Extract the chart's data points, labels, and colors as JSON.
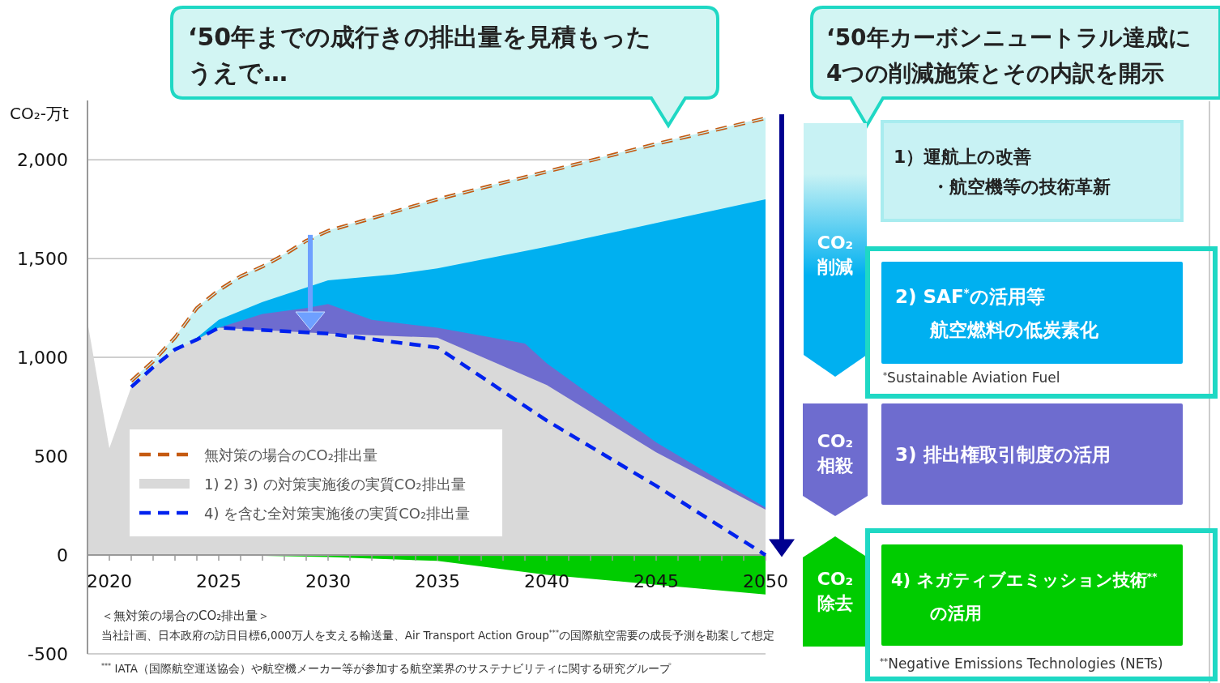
{
  "chart_data": {
    "type": "area",
    "ylabel": "CO₂-万t",
    "xlim": [
      2019,
      2050
    ],
    "xticks": [
      {
        "value": 2020,
        "label": "2020"
      },
      {
        "value": 2021,
        "label": null
      },
      {
        "value": 2022,
        "label": null
      },
      {
        "value": 2023,
        "label": null
      },
      {
        "value": 2024,
        "label": null
      },
      {
        "value": 2025,
        "label": "2025"
      },
      {
        "value": 2026,
        "label": null
      },
      {
        "value": 2027,
        "label": null
      },
      {
        "value": 2028,
        "label": null
      },
      {
        "value": 2029,
        "label": null
      },
      {
        "value": 2030,
        "label": "2030"
      },
      {
        "value": 2031,
        "label": null
      },
      {
        "value": 2032,
        "label": null
      },
      {
        "value": 2033,
        "label": null
      },
      {
        "value": 2034,
        "label": null
      },
      {
        "value": 2035,
        "label": "2035"
      },
      {
        "value": 2036,
        "label": null
      },
      {
        "value": 2037,
        "label": null
      },
      {
        "value": 2038,
        "label": null
      },
      {
        "value": 2039,
        "label": null
      },
      {
        "value": 2040,
        "label": "2040"
      },
      {
        "value": 2041,
        "label": null
      },
      {
        "value": 2042,
        "label": null
      },
      {
        "value": 2043,
        "label": null
      },
      {
        "value": 2044,
        "label": null
      },
      {
        "value": 2045,
        "label": "2045"
      },
      {
        "value": 2046,
        "label": null
      },
      {
        "value": 2047,
        "label": null
      },
      {
        "value": 2048,
        "label": null
      },
      {
        "value": 2049,
        "label": null
      },
      {
        "value": 2050,
        "label": "2050"
      }
    ],
    "ylim": [
      -500,
      2300
    ],
    "yticks": [
      -500,
      0,
      500,
      {
        "value": 1000,
        "label": "1,000"
      },
      {
        "value": 1500,
        "label": "1,500"
      },
      {
        "value": 2000,
        "label": "2,000"
      }
    ],
    "grid": "y",
    "legend": "bottom left",
    "series": [
      {
        "name": "無対策の場合のCO₂排出量",
        "type": "line",
        "line_style": "dashed",
        "color": "#c55a11",
        "x": [
          2021,
          2022,
          2023,
          2024,
          2025,
          2026,
          2027,
          2028,
          2029,
          2030,
          2035,
          2040,
          2045,
          2050
        ],
        "values": [
          880,
          980,
          1100,
          1250,
          1340,
          1410,
          1460,
          1520,
          1590,
          1640,
          1800,
          1940,
          2080,
          2210
        ]
      },
      {
        "color": "#c8f2f4",
        "x": [
          2021,
          2022,
          2023,
          2024,
          2025,
          2026,
          2027,
          2028,
          2029,
          2030,
          2035,
          2040,
          2045,
          2050
        ],
        "values": [
          880,
          980,
          1100,
          1250,
          1340,
          1410,
          1460,
          1520,
          1590,
          1640,
          1800,
          1940,
          2080,
          2210
        ]
      },
      {
        "color": "#00b0f0",
        "x": [
          2024,
          2025,
          2027,
          2030,
          2033,
          2035,
          2040,
          2045,
          2050
        ],
        "values": [
          1100,
          1190,
          1280,
          1390,
          1420,
          1450,
          1560,
          1680,
          1800
        ]
      },
      {
        "color": "#6e6ccf",
        "x": [
          2024,
          2025,
          2027,
          2029,
          2030,
          2032,
          2035,
          2039,
          2040,
          2045,
          2050
        ],
        "values": [
          1090,
          1150,
          1220,
          1250,
          1270,
          1190,
          1150,
          1070,
          970,
          570,
          240
        ]
      },
      {
        "name": "1) 2) 3) の対策実施後の実質CO₂排出量",
        "color": "#d9d9d9",
        "x": [
          2019,
          2020,
          2021,
          2022,
          2023,
          2024,
          2025,
          2030,
          2035,
          2040,
          2045,
          2050
        ],
        "values": [
          1180,
          540,
          850,
          950,
          1040,
          1090,
          1150,
          1120,
          1100,
          860,
          520,
          230
        ]
      },
      {
        "color": "#00cc00",
        "x": [
          2025,
          2030,
          2035,
          2040,
          2045,
          2050
        ],
        "values": [
          0,
          -10,
          -30,
          -100,
          -150,
          -200
        ]
      },
      {
        "name": "4) を含む全対策実施後の実質CO₂排出量",
        "type": "line",
        "line_style": "dashed",
        "color": "#0022ee",
        "x": [
          2021,
          2022,
          2023,
          2024,
          2025,
          2030,
          2035,
          2040,
          2045,
          2050
        ],
        "values": [
          850,
          950,
          1040,
          1090,
          1150,
          1120,
          1050,
          680,
          350,
          0
        ]
      }
    ],
    "annotations": [
      "‘50年までの成行きの排出量を見積もった",
      "うえで…",
      "‘50年カーボンニュートラル達成に",
      "4つの削減施策とその内訳を開示",
      "CO₂\n削減",
      "CO₂\n相殺",
      "CO₂\n除去",
      "1）運航上の改善",
      "・航空機等の技術革新",
      "2) SAF$^{*}$の活用等",
      "航空燃料の低炭素化",
      "$^{*}$Sustainable Aviation Fuel",
      "3) 排出権取引制度の活用",
      "4) ネガティブエミッション技術$^{**}$",
      "の活用",
      "$^{**}$Negative Emissions Technologies (NETs)",
      "＜無対策の場合のCO₂排出量＞",
      "当社計画、日本政府の訪日目標6,000万人を支える輸送量、Air Transport Action Group$^{***}$の国際航空需要の成長予測を勘案して想定",
      "$^{***}$ IATA（国際航空運送協会）や航空機メーカー等が参加する航空業界のサステナビリティに関する研究グループ"
    ]
  }
}
